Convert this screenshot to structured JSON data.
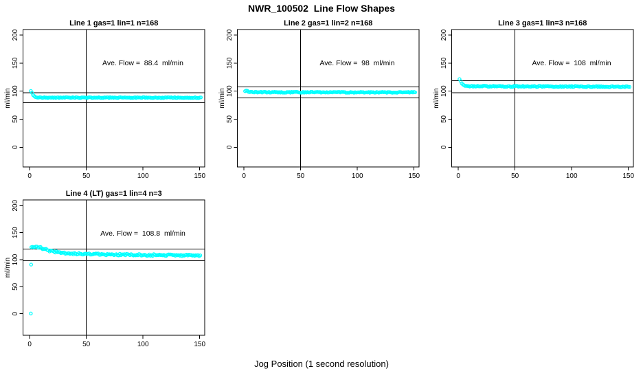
{
  "figure": {
    "title": "NWR_100502  Line Flow Shapes",
    "xlabel": "Jog Position (1 second resolution)",
    "background_color": "#FFFFFF",
    "axis_color": "#000000",
    "point_color": "#00FFFF"
  },
  "chart_data": [
    {
      "type": "scatter",
      "title": "Line 1 gas=1 lin=1 n=168",
      "n": 168,
      "annotation": "Ave. Flow =  88.4  ml/min",
      "ave_flow_ml_min": 88.4,
      "ylabel": "ml/min",
      "xticks": [
        0,
        50,
        100,
        150
      ],
      "yticks": [
        0,
        50,
        100,
        150,
        200
      ],
      "xlim": [
        -6,
        154
      ],
      "ylim": [
        -35,
        210
      ],
      "grid": false,
      "ref_line_upper": 97.2,
      "ref_line_lower": 79.6,
      "vline_x": 50,
      "series": {
        "name": "line-1-flow",
        "x_start": 1,
        "x_end": 151,
        "x_step": 1,
        "profile_keypoints": [
          [
            1,
            100.5
          ],
          [
            2,
            96.5
          ],
          [
            3,
            93
          ],
          [
            4,
            91
          ],
          [
            6,
            89.2
          ],
          [
            10,
            88.5
          ],
          [
            151,
            88.4
          ]
        ],
        "noise_amplitude": 0.7
      },
      "outliers": []
    },
    {
      "type": "scatter",
      "title": "Line 2 gas=1 lin=2 n=168",
      "n": 168,
      "annotation": "Ave. Flow =  98  ml/min",
      "ave_flow_ml_min": 98,
      "ylabel": "ml/min",
      "xticks": [
        0,
        50,
        100,
        150
      ],
      "yticks": [
        0,
        50,
        100,
        150,
        200
      ],
      "xlim": [
        -6,
        154
      ],
      "ylim": [
        -35,
        210
      ],
      "grid": false,
      "ref_line_upper": 107.8,
      "ref_line_lower": 88.2,
      "vline_x": 50,
      "series": {
        "name": "line-2-flow",
        "x_start": 1,
        "x_end": 151,
        "x_step": 1,
        "profile_keypoints": [
          [
            1,
            99.5
          ],
          [
            2,
            100.5
          ],
          [
            3,
            99.8
          ],
          [
            5,
            98.6
          ],
          [
            8,
            98.1
          ],
          [
            151,
            97.8
          ]
        ],
        "noise_amplitude": 0.8
      },
      "outliers": []
    },
    {
      "type": "scatter",
      "title": "Line 3 gas=1 lin=3 n=168",
      "n": 168,
      "annotation": "Ave. Flow =  108  ml/min",
      "ave_flow_ml_min": 108,
      "ylabel": "ml/min",
      "xticks": [
        0,
        50,
        100,
        150
      ],
      "yticks": [
        0,
        50,
        100,
        150,
        200
      ],
      "xlim": [
        -6,
        154
      ],
      "ylim": [
        -35,
        210
      ],
      "grid": false,
      "ref_line_upper": 118.8,
      "ref_line_lower": 97.2,
      "vline_x": 50,
      "series": {
        "name": "line-3-flow",
        "x_start": 1,
        "x_end": 151,
        "x_step": 1,
        "profile_keypoints": [
          [
            1,
            122
          ],
          [
            2,
            117.5
          ],
          [
            3,
            113.5
          ],
          [
            4,
            111.5
          ],
          [
            6,
            109.8
          ],
          [
            10,
            108.8
          ],
          [
            80,
            108.4
          ],
          [
            151,
            107.9
          ]
        ],
        "noise_amplitude": 0.9
      },
      "outliers": []
    },
    {
      "type": "scatter",
      "title": "Line 4 (LT) gas=1 lin=4 n=3",
      "n": 3,
      "annotation": "Ave. Flow =  108.8  ml/min",
      "ave_flow_ml_min": 108.8,
      "ylabel": "ml/min",
      "xticks": [
        0,
        50,
        100,
        150
      ],
      "yticks": [
        0,
        50,
        100,
        150,
        200
      ],
      "xlim": [
        -6,
        154
      ],
      "ylim": [
        -35,
        210
      ],
      "grid": false,
      "ref_line_upper": 119.7,
      "ref_line_lower": 97.9,
      "vline_x": 50,
      "series": {
        "name": "line-4-flow",
        "x_start": 1.5,
        "x_end": 151,
        "x_step": 1,
        "profile_keypoints": [
          [
            1.5,
            123
          ],
          [
            5,
            124.5
          ],
          [
            9,
            123
          ],
          [
            13,
            119.5
          ],
          [
            18,
            116.5
          ],
          [
            24,
            114
          ],
          [
            32,
            112
          ],
          [
            45,
            110.8
          ],
          [
            60,
            110
          ],
          [
            80,
            109.4
          ],
          [
            105,
            108.7
          ],
          [
            130,
            108.2
          ],
          [
            151,
            107.4
          ]
        ],
        "noise_amplitude": 1.6
      },
      "outliers": [
        [
          1.3,
          91
        ],
        [
          1,
          0.5
        ]
      ]
    }
  ]
}
